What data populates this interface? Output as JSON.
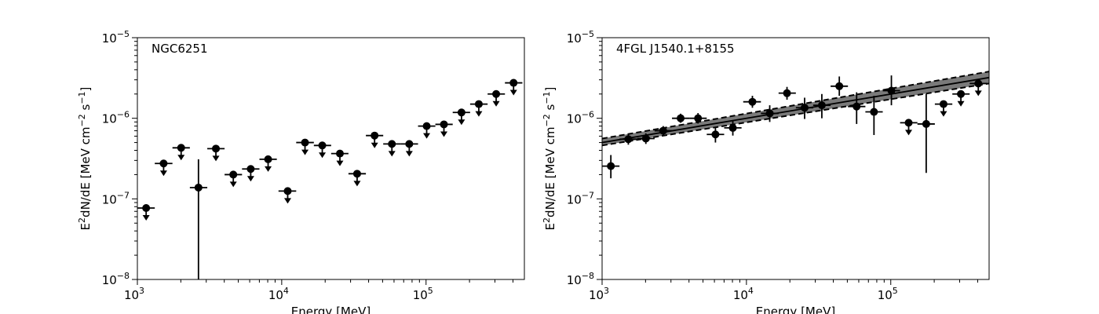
{
  "chart_data": [
    {
      "type": "scatter",
      "title": "NGC6251",
      "xlabel": "Energy [MeV]",
      "ylabel_parts": [
        "E",
        "2",
        "dN/dE [MeV cm",
        "−2",
        " s",
        "−1",
        "]"
      ],
      "xscale": "log",
      "yscale": "log",
      "xlim": [
        1000,
        480000
      ],
      "ylim": [
        1e-08,
        1e-05
      ],
      "x_ticks": [
        {
          "base": "10",
          "exp": "3",
          "value": 1000
        },
        {
          "base": "10",
          "exp": "4",
          "value": 10000
        },
        {
          "base": "10",
          "exp": "5",
          "value": 100000
        }
      ],
      "y_ticks": [
        {
          "base": "10",
          "exp": "−8",
          "value": 1e-08
        },
        {
          "base": "10",
          "exp": "−7",
          "value": 1e-07
        },
        {
          "base": "10",
          "exp": "−6",
          "value": 1e-06
        },
        {
          "base": "10",
          "exp": "−5",
          "value": 1e-05
        }
      ],
      "points": [
        {
          "x": 1150,
          "y": 7.7e-08,
          "xlo": 1000,
          "xhi": 1320,
          "ul": true
        },
        {
          "x": 1520,
          "y": 2.75e-07,
          "xlo": 1320,
          "xhi": 1750,
          "ul": true
        },
        {
          "x": 2010,
          "y": 4.3e-07,
          "xlo": 1750,
          "xhi": 2310,
          "ul": true
        },
        {
          "x": 2650,
          "y": 1.38e-07,
          "xlo": 2310,
          "xhi": 3050,
          "ylo": 1e-08,
          "yhi": 3.1e-07,
          "ul": false
        },
        {
          "x": 3500,
          "y": 4.2e-07,
          "xlo": 3050,
          "xhi": 4020,
          "ul": true
        },
        {
          "x": 4620,
          "y": 2e-07,
          "xlo": 4020,
          "xhi": 5310,
          "ul": true
        },
        {
          "x": 6100,
          "y": 2.35e-07,
          "xlo": 5310,
          "xhi": 7010,
          "ul": true
        },
        {
          "x": 8050,
          "y": 3.1e-07,
          "xlo": 7010,
          "xhi": 9250,
          "ul": true
        },
        {
          "x": 11000,
          "y": 1.25e-07,
          "xlo": 9500,
          "xhi": 12600,
          "ul": true
        },
        {
          "x": 14500,
          "y": 5e-07,
          "xlo": 12600,
          "xhi": 16700,
          "ul": true
        },
        {
          "x": 19100,
          "y": 4.6e-07,
          "xlo": 16700,
          "xhi": 22000,
          "ul": true
        },
        {
          "x": 25300,
          "y": 3.65e-07,
          "xlo": 22000,
          "xhi": 29000,
          "ul": true
        },
        {
          "x": 33300,
          "y": 2.05e-07,
          "xlo": 29000,
          "xhi": 38300,
          "ul": true
        },
        {
          "x": 44000,
          "y": 6.1e-07,
          "xlo": 38300,
          "xhi": 50500,
          "ul": true
        },
        {
          "x": 58000,
          "y": 4.8e-07,
          "xlo": 50500,
          "xhi": 66700,
          "ul": true
        },
        {
          "x": 76500,
          "y": 4.8e-07,
          "xlo": 66700,
          "xhi": 88000,
          "ul": true
        },
        {
          "x": 101000,
          "y": 8e-07,
          "xlo": 88000,
          "xhi": 116000,
          "ul": true
        },
        {
          "x": 133000,
          "y": 8.4e-07,
          "xlo": 116000,
          "xhi": 153000,
          "ul": true
        },
        {
          "x": 176000,
          "y": 1.18e-06,
          "xlo": 153000,
          "xhi": 202000,
          "ul": true
        },
        {
          "x": 232000,
          "y": 1.5e-06,
          "xlo": 202000,
          "xhi": 267000,
          "ul": true
        },
        {
          "x": 306000,
          "y": 2e-06,
          "xlo": 267000,
          "xhi": 352000,
          "ul": true
        },
        {
          "x": 404000,
          "y": 2.75e-06,
          "xlo": 352000,
          "xhi": 465000,
          "ul": true
        }
      ]
    },
    {
      "type": "scatter",
      "title": "4FGL J1540.1+8155",
      "xlabel": "Energy [MeV]",
      "ylabel_parts": [
        "E",
        "2",
        "dN/dE [MeV cm",
        "−2",
        " s",
        "−1",
        "]"
      ],
      "xscale": "log",
      "yscale": "log",
      "xlim": [
        1000,
        480000
      ],
      "ylim": [
        1e-08,
        1e-05
      ],
      "x_ticks": [
        {
          "base": "10",
          "exp": "3",
          "value": 1000
        },
        {
          "base": "10",
          "exp": "4",
          "value": 10000
        },
        {
          "base": "10",
          "exp": "5",
          "value": 100000
        }
      ],
      "y_ticks": [
        {
          "base": "10",
          "exp": "−8",
          "value": 1e-08
        },
        {
          "base": "10",
          "exp": "−7",
          "value": 1e-07
        },
        {
          "base": "10",
          "exp": "−6",
          "value": 1e-06
        },
        {
          "base": "10",
          "exp": "−5",
          "value": 1e-05
        }
      ],
      "model": {
        "x": [
          1000,
          480000
        ],
        "best": [
          5e-07,
          3.2e-06
        ],
        "upper": [
          5.6e-07,
          3.8e-06
        ],
        "lower": [
          4.6e-07,
          2.7e-06
        ]
      },
      "points": [
        {
          "x": 1150,
          "y": 2.55e-07,
          "xlo": 1000,
          "xhi": 1320,
          "ylo": 1.8e-07,
          "yhi": 3.5e-07,
          "ul": false
        },
        {
          "x": 1520,
          "y": 5.5e-07,
          "xlo": 1320,
          "xhi": 1750,
          "ylo": 4.7e-07,
          "yhi": 6.4e-07,
          "ul": false
        },
        {
          "x": 2010,
          "y": 5.6e-07,
          "xlo": 1750,
          "xhi": 2310,
          "ylo": 4.8e-07,
          "yhi": 6.5e-07,
          "ul": false
        },
        {
          "x": 2650,
          "y": 7e-07,
          "xlo": 2310,
          "xhi": 3050,
          "ylo": 6.1e-07,
          "yhi": 8e-07,
          "ul": false
        },
        {
          "x": 3500,
          "y": 1e-06,
          "xlo": 3050,
          "xhi": 4020,
          "ylo": 8.8e-07,
          "yhi": 1.14e-06,
          "ul": false
        },
        {
          "x": 4620,
          "y": 1e-06,
          "xlo": 4020,
          "xhi": 5310,
          "ylo": 8.6e-07,
          "yhi": 1.16e-06,
          "ul": false
        },
        {
          "x": 6100,
          "y": 6.3e-07,
          "xlo": 5310,
          "xhi": 7010,
          "ylo": 5e-07,
          "yhi": 7.8e-07,
          "ul": false
        },
        {
          "x": 8050,
          "y": 7.6e-07,
          "xlo": 7010,
          "xhi": 9250,
          "ylo": 6.1e-07,
          "yhi": 9.4e-07,
          "ul": false
        },
        {
          "x": 11000,
          "y": 1.6e-06,
          "xlo": 9500,
          "xhi": 12600,
          "ylo": 1.35e-06,
          "yhi": 1.9e-06,
          "ul": false
        },
        {
          "x": 14500,
          "y": 1.15e-06,
          "xlo": 12600,
          "xhi": 16700,
          "ylo": 9e-07,
          "yhi": 1.45e-06,
          "ul": false
        },
        {
          "x": 19100,
          "y": 2.05e-06,
          "xlo": 16700,
          "xhi": 22000,
          "ylo": 1.7e-06,
          "yhi": 2.45e-06,
          "ul": false
        },
        {
          "x": 25300,
          "y": 1.35e-06,
          "xlo": 22000,
          "xhi": 29000,
          "ylo": 9.8e-07,
          "yhi": 1.8e-06,
          "ul": false
        },
        {
          "x": 33300,
          "y": 1.45e-06,
          "xlo": 29000,
          "xhi": 38300,
          "ylo": 1e-06,
          "yhi": 2e-06,
          "ul": false
        },
        {
          "x": 44000,
          "y": 2.5e-06,
          "xlo": 38300,
          "xhi": 50500,
          "ylo": 1.9e-06,
          "yhi": 3.3e-06,
          "ul": false
        },
        {
          "x": 58000,
          "y": 1.4e-06,
          "xlo": 50500,
          "xhi": 66700,
          "ylo": 8.5e-07,
          "yhi": 2.1e-06,
          "ul": false
        },
        {
          "x": 76500,
          "y": 1.2e-06,
          "xlo": 66700,
          "xhi": 88000,
          "ylo": 6.2e-07,
          "yhi": 1.9e-06,
          "ul": false
        },
        {
          "x": 101000,
          "y": 2.2e-06,
          "xlo": 88000,
          "xhi": 116000,
          "ylo": 1.45e-06,
          "yhi": 3.4e-06,
          "ul": false
        },
        {
          "x": 133000,
          "y": 8.8e-07,
          "xlo": 116000,
          "xhi": 153000,
          "ul": true
        },
        {
          "x": 176000,
          "y": 8.5e-07,
          "xlo": 153000,
          "xhi": 202000,
          "ylo": 2.1e-07,
          "yhi": 2e-06,
          "ul": false
        },
        {
          "x": 232000,
          "y": 1.5e-06,
          "xlo": 202000,
          "xhi": 267000,
          "ul": true
        },
        {
          "x": 306000,
          "y": 2e-06,
          "xlo": 267000,
          "xhi": 352000,
          "ul": true
        },
        {
          "x": 404000,
          "y": 2.7e-06,
          "xlo": 352000,
          "xhi": 465000,
          "ul": true
        }
      ]
    }
  ]
}
